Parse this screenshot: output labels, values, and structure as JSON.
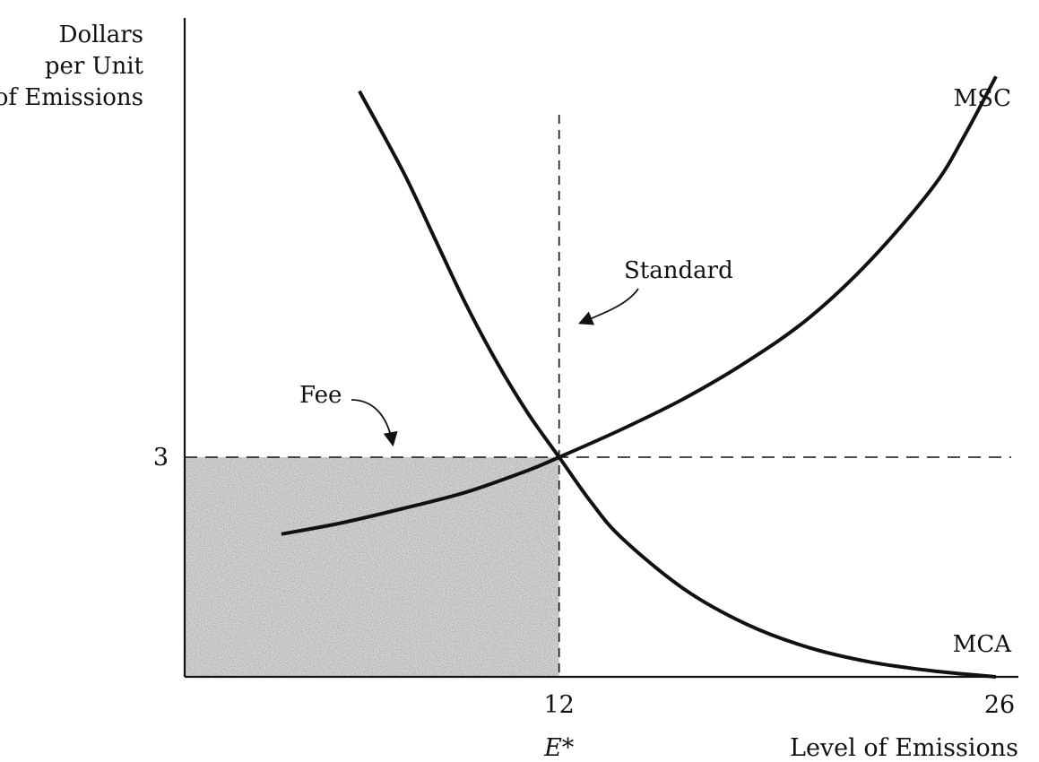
{
  "chart_data": {
    "type": "line",
    "ylabel": [
      "Dollars",
      "per Unit",
      "of Emissions"
    ],
    "xlabel": "Level of Emissions",
    "xlim": [
      0,
      26
    ],
    "x_ticks": [
      {
        "value": 12,
        "label": "12"
      },
      {
        "value": 26,
        "label": "26"
      }
    ],
    "y_ticks": [
      {
        "value": 3,
        "label": "3"
      }
    ],
    "equilibrium": {
      "x": 12,
      "y": 3,
      "x_label": "E*"
    },
    "series": [
      {
        "name": "MSC",
        "points": [
          [
            3.1,
            1.95
          ],
          [
            5,
            2.1
          ],
          [
            7,
            2.3
          ],
          [
            9,
            2.52
          ],
          [
            11,
            2.82
          ],
          [
            12,
            3.0
          ],
          [
            14,
            3.38
          ],
          [
            16,
            3.8
          ],
          [
            18,
            4.3
          ],
          [
            20,
            4.9
          ],
          [
            22,
            5.7
          ],
          [
            24,
            6.7
          ],
          [
            25,
            7.4
          ],
          [
            26,
            8.2
          ]
        ]
      },
      {
        "name": "MCA",
        "points": [
          [
            5.6,
            8.0
          ],
          [
            7,
            6.9
          ],
          [
            8,
            6.0
          ],
          [
            9,
            5.1
          ],
          [
            10,
            4.3
          ],
          [
            11,
            3.6
          ],
          [
            12,
            3.0
          ],
          [
            13,
            2.4
          ],
          [
            14,
            1.9
          ],
          [
            16,
            1.2
          ],
          [
            18,
            0.72
          ],
          [
            20,
            0.4
          ],
          [
            22,
            0.2
          ],
          [
            24,
            0.08
          ],
          [
            26,
            0.0
          ]
        ]
      }
    ],
    "annotations": [
      {
        "text": "Standard",
        "points_to": "vertical dashed line at E* = 12"
      },
      {
        "text": "Fee",
        "points_to": "horizontal dashed line at 3"
      }
    ],
    "shaded_region": {
      "x": [
        0,
        12
      ],
      "y": [
        0,
        3
      ],
      "style": "stippled"
    },
    "grid": false,
    "legend": "none"
  },
  "colors": {
    "ink": "#111111",
    "shading": "#9a9a9a"
  }
}
